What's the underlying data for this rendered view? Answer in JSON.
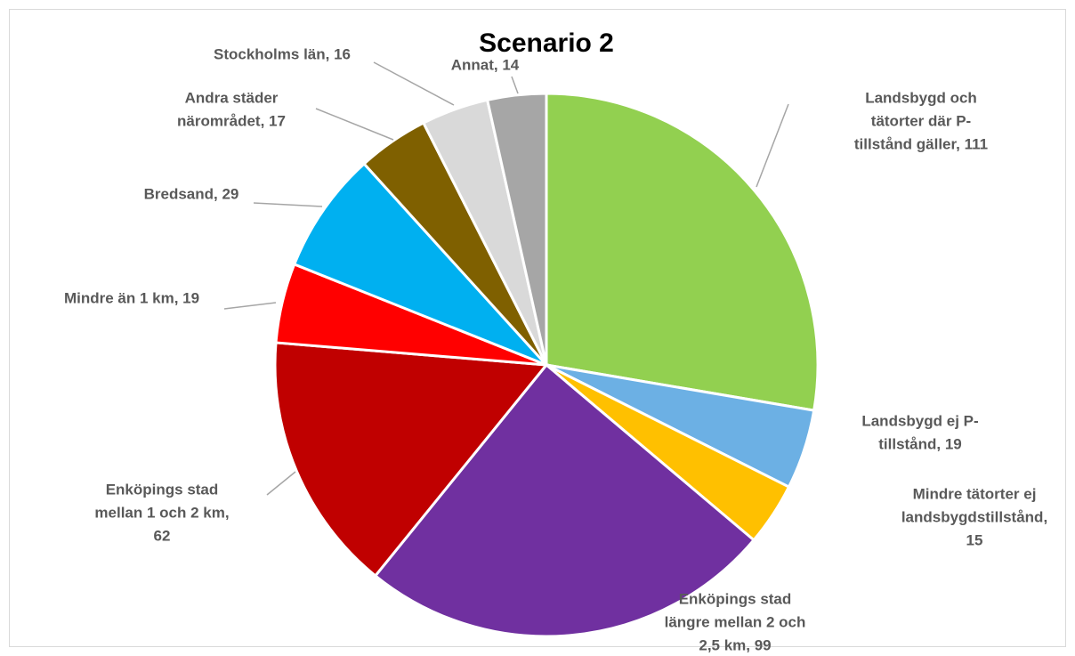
{
  "chart_data": {
    "type": "pie",
    "title": "Scenario 2",
    "values": [
      111,
      19,
      15,
      99,
      62,
      19,
      29,
      17,
      16,
      14
    ],
    "value_labels": [
      [
        "Landsbygd och",
        "tätorter där P-",
        "tillstånd gäller, 111"
      ],
      [
        "Landsbygd ej P-",
        "tillstånd, 19"
      ],
      [
        "Mindre tätorter ej",
        "landsbygdstillstånd,",
        "15"
      ],
      [
        "Enköpings stad",
        "längre mellan 2 och",
        "2,5 km, 99"
      ],
      [
        "Enköpings stad",
        "mellan 1 och 2 km,",
        "62"
      ],
      [
        "Mindre än 1 km, 19"
      ],
      [
        "Bredsand, 29"
      ],
      [
        "Andra städer",
        "närområdet, 17"
      ],
      [
        "Stockholms län, 16"
      ],
      [
        "Annat, 14"
      ]
    ],
    "colors": [
      "#92d050",
      "#6cb0e4",
      "#ffc000",
      "#7030a0",
      "#c00000",
      "#ff0000",
      "#00b0f0",
      "#7f6000",
      "#d9d9d9",
      "#a6a6a6"
    ]
  }
}
